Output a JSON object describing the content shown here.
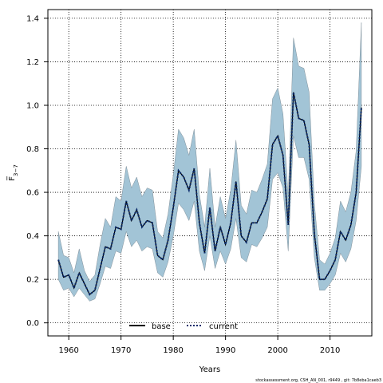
{
  "chart_data": {
    "type": "line",
    "xlabel": "Years",
    "ylabel": "F̅",
    "ylabel_subscript": "3−7",
    "xlim": [
      1956,
      2018
    ],
    "ylim": [
      -0.06,
      1.44
    ],
    "x_ticks": [
      1960,
      1970,
      1980,
      1990,
      2000,
      2010
    ],
    "y_ticks": [
      0.0,
      0.2,
      0.4,
      0.6,
      0.8,
      1.0,
      1.2,
      1.4
    ],
    "y_tick_labels": [
      "0.0",
      "0.2",
      "0.4",
      "0.6",
      "0.8",
      "1.0",
      "1.2",
      "1.4"
    ],
    "grid": true,
    "legend_placement": "bottom-center",
    "band_color": "#a2c4d6",
    "band_edge_color": "#7f8f99",
    "x": [
      1958,
      1959,
      1960,
      1961,
      1962,
      1963,
      1964,
      1965,
      1966,
      1967,
      1968,
      1969,
      1970,
      1971,
      1972,
      1973,
      1974,
      1975,
      1976,
      1977,
      1978,
      1979,
      1980,
      1981,
      1982,
      1983,
      1984,
      1985,
      1986,
      1987,
      1988,
      1989,
      1990,
      1991,
      1992,
      1993,
      1994,
      1995,
      1996,
      1997,
      1998,
      1999,
      2000,
      2001,
      2002,
      2003,
      2004,
      2005,
      2006,
      2007,
      2008,
      2009,
      2010,
      2011,
      2012,
      2013,
      2014,
      2015,
      2016
    ],
    "series": [
      {
        "name": "base",
        "style": "solid",
        "color": "#000000",
        "values": [
          0.29,
          0.21,
          0.22,
          0.16,
          0.23,
          0.18,
          0.13,
          0.15,
          0.25,
          0.35,
          0.34,
          0.44,
          0.43,
          0.56,
          0.47,
          0.52,
          0.44,
          0.47,
          0.46,
          0.31,
          0.29,
          0.38,
          0.53,
          0.7,
          0.67,
          0.61,
          0.71,
          0.46,
          0.32,
          0.53,
          0.33,
          0.44,
          0.36,
          0.46,
          0.65,
          0.4,
          0.37,
          0.46,
          0.46,
          0.51,
          0.57,
          0.82,
          0.86,
          0.77,
          0.45,
          1.06,
          0.94,
          0.93,
          0.82,
          0.41,
          0.2,
          0.2,
          0.24,
          0.29,
          0.42,
          0.38,
          0.45,
          0.6,
          0.99
        ]
      },
      {
        "name": "current",
        "style": "dotted",
        "color": "#0a2a6b",
        "values": [
          0.29,
          0.21,
          0.22,
          0.16,
          0.23,
          0.18,
          0.13,
          0.15,
          0.25,
          0.35,
          0.34,
          0.44,
          0.43,
          0.56,
          0.47,
          0.52,
          0.44,
          0.47,
          0.46,
          0.31,
          0.29,
          0.38,
          0.53,
          0.7,
          0.67,
          0.61,
          0.71,
          0.46,
          0.32,
          0.53,
          0.33,
          0.44,
          0.36,
          0.46,
          0.65,
          0.4,
          0.37,
          0.46,
          0.46,
          0.51,
          0.57,
          0.82,
          0.86,
          0.77,
          0.45,
          1.06,
          0.94,
          0.93,
          0.82,
          0.41,
          0.2,
          0.2,
          0.24,
          0.29,
          0.42,
          0.38,
          0.45,
          0.6,
          0.99
        ]
      }
    ],
    "band_upper": [
      0.42,
      0.31,
      0.3,
      0.23,
      0.34,
      0.24,
      0.19,
      0.22,
      0.36,
      0.48,
      0.44,
      0.58,
      0.56,
      0.72,
      0.62,
      0.67,
      0.58,
      0.62,
      0.61,
      0.42,
      0.39,
      0.5,
      0.68,
      0.89,
      0.85,
      0.77,
      0.89,
      0.59,
      0.44,
      0.71,
      0.44,
      0.58,
      0.48,
      0.61,
      0.84,
      0.54,
      0.5,
      0.61,
      0.6,
      0.66,
      0.73,
      1.03,
      1.08,
      0.96,
      0.58,
      1.31,
      1.18,
      1.17,
      1.06,
      0.55,
      0.29,
      0.27,
      0.32,
      0.39,
      0.56,
      0.51,
      0.6,
      0.79,
      1.38
    ],
    "band_lower": [
      0.2,
      0.15,
      0.16,
      0.12,
      0.16,
      0.13,
      0.1,
      0.11,
      0.18,
      0.26,
      0.25,
      0.33,
      0.32,
      0.42,
      0.35,
      0.38,
      0.33,
      0.35,
      0.34,
      0.23,
      0.21,
      0.28,
      0.4,
      0.55,
      0.52,
      0.47,
      0.56,
      0.33,
      0.24,
      0.4,
      0.25,
      0.33,
      0.27,
      0.34,
      0.48,
      0.3,
      0.28,
      0.36,
      0.35,
      0.39,
      0.44,
      0.66,
      0.69,
      0.62,
      0.33,
      0.86,
      0.76,
      0.76,
      0.66,
      0.3,
      0.15,
      0.15,
      0.18,
      0.22,
      0.32,
      0.28,
      0.34,
      0.47,
      0.72
    ]
  },
  "footer": "stockassessment.org, CSH_AN_001, r9449 , git: 7b8eba1caeb3"
}
